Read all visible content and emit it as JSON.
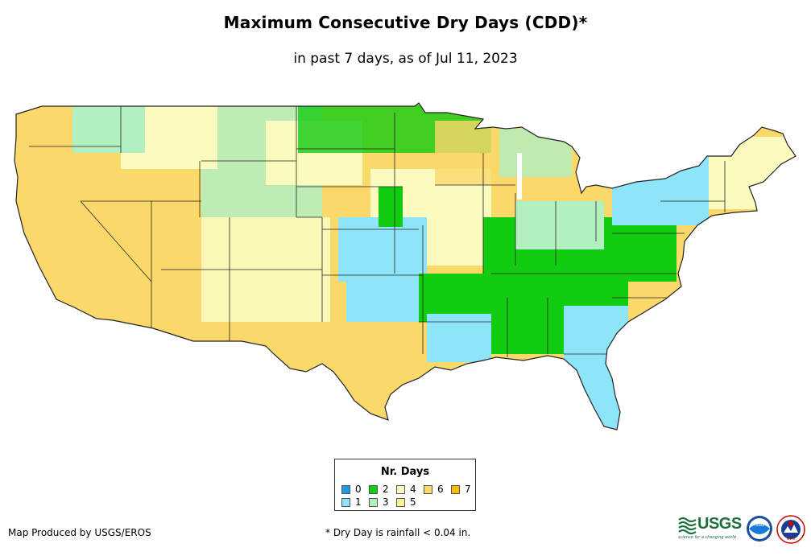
{
  "header": {
    "title": "Maximum Consecutive Dry Days (CDD)*",
    "subtitle": "in past 7 days, as of Jul 11, 2023"
  },
  "legend": {
    "title": "Nr. Days",
    "items": [
      {
        "label": "0",
        "color": "#1e9be6"
      },
      {
        "label": "1",
        "color": "#8ee4f8"
      },
      {
        "label": "2",
        "color": "#11cc11"
      },
      {
        "label": "3",
        "color": "#b2f0c2"
      },
      {
        "label": "4",
        "color": "#fbfbc0"
      },
      {
        "label": "5",
        "color": "#fdf29a"
      },
      {
        "label": "6",
        "color": "#fad86a"
      },
      {
        "label": "7",
        "color": "#f5bc00"
      }
    ]
  },
  "footer": {
    "credit": "Map Produced by USGS/EROS",
    "note": "* Dry Day is rainfall < 0.04 in."
  },
  "logos": {
    "usgs": "USGS",
    "usgs_tagline": "science for a changing world",
    "noaa": "noaa",
    "nws": "NWS"
  }
}
